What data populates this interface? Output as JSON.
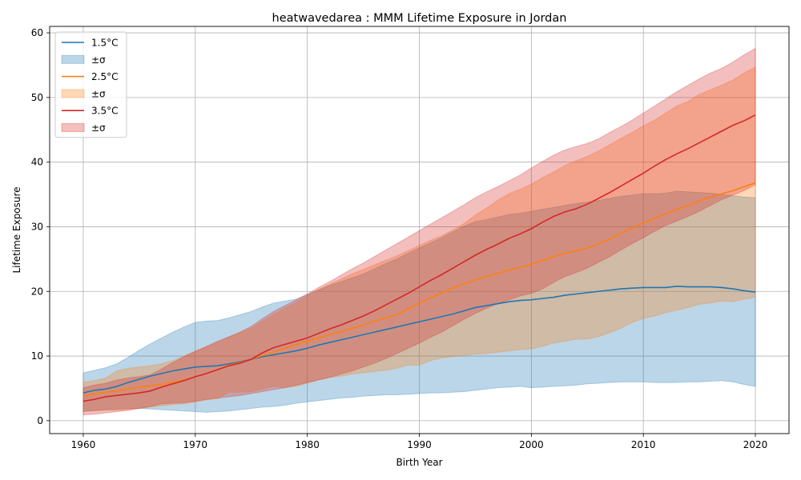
{
  "chart_data": {
    "type": "area",
    "title": "heatwavedarea : MMM Lifetime Exposure in Jordan",
    "xlabel": "Birth Year",
    "ylabel": "Lifetime Exposure",
    "xlim": [
      1957,
      2023
    ],
    "ylim": [
      -2,
      61
    ],
    "xticks": [
      1960,
      1970,
      1980,
      1990,
      2000,
      2010,
      2020
    ],
    "yticks": [
      0,
      10,
      20,
      30,
      40,
      50,
      60
    ],
    "grid": true,
    "legend_position": "top-left",
    "x": [
      1960,
      1961,
      1962,
      1963,
      1964,
      1965,
      1966,
      1967,
      1968,
      1969,
      1970,
      1971,
      1972,
      1973,
      1974,
      1975,
      1976,
      1977,
      1978,
      1979,
      1980,
      1981,
      1982,
      1983,
      1984,
      1985,
      1986,
      1987,
      1988,
      1989,
      1990,
      1991,
      1992,
      1993,
      1994,
      1995,
      1996,
      1997,
      1998,
      1999,
      2000,
      2001,
      2002,
      2003,
      2004,
      2005,
      2006,
      2007,
      2008,
      2009,
      2010,
      2011,
      2012,
      2013,
      2014,
      2015,
      2016,
      2017,
      2018,
      2019,
      2020
    ],
    "series": [
      {
        "name": "1.5°C",
        "band_label": "±σ",
        "color": "#1f77b4",
        "band_color": "#1f77b4",
        "mean": [
          4.3,
          4.7,
          4.9,
          5.3,
          5.9,
          6.4,
          6.9,
          7.3,
          7.7,
          8.0,
          8.3,
          8.4,
          8.5,
          8.8,
          9.1,
          9.5,
          9.9,
          10.2,
          10.5,
          10.8,
          11.2,
          11.7,
          12.1,
          12.5,
          12.9,
          13.3,
          13.7,
          14.1,
          14.5,
          14.9,
          15.3,
          15.7,
          16.1,
          16.5,
          17.0,
          17.5,
          17.8,
          18.1,
          18.4,
          18.6,
          18.7,
          18.9,
          19.1,
          19.4,
          19.6,
          19.8,
          20.0,
          20.2,
          20.4,
          20.5,
          20.6,
          20.6,
          20.6,
          20.8,
          20.7,
          20.7,
          20.7,
          20.6,
          20.4,
          20.1,
          19.9
        ],
        "upper": [
          7.4,
          7.8,
          8.2,
          8.8,
          9.8,
          10.9,
          11.9,
          12.8,
          13.7,
          14.5,
          15.2,
          15.4,
          15.5,
          15.9,
          16.4,
          16.9,
          17.6,
          18.2,
          18.5,
          18.8,
          19.5,
          20.2,
          20.9,
          21.5,
          22.1,
          22.7,
          23.5,
          24.3,
          25.0,
          25.9,
          26.7,
          27.5,
          28.3,
          29.2,
          30.1,
          30.8,
          31.1,
          31.5,
          31.9,
          32.1,
          32.4,
          32.7,
          33.0,
          33.3,
          33.6,
          33.8,
          34.1,
          34.4,
          34.7,
          34.9,
          35.1,
          35.1,
          35.2,
          35.5,
          35.4,
          35.3,
          35.2,
          35.0,
          34.8,
          34.6,
          34.5
        ],
        "lower": [
          1.4,
          1.6,
          1.7,
          1.8,
          1.9,
          1.9,
          1.8,
          1.7,
          1.6,
          1.5,
          1.4,
          1.3,
          1.4,
          1.5,
          1.7,
          1.9,
          2.1,
          2.2,
          2.4,
          2.7,
          2.9,
          3.1,
          3.3,
          3.5,
          3.6,
          3.8,
          3.9,
          4.0,
          4.0,
          4.1,
          4.2,
          4.3,
          4.3,
          4.4,
          4.5,
          4.7,
          4.9,
          5.1,
          5.2,
          5.3,
          5.1,
          5.2,
          5.3,
          5.4,
          5.5,
          5.7,
          5.8,
          5.9,
          6.0,
          6.0,
          6.0,
          5.9,
          5.9,
          5.9,
          6.0,
          6.0,
          6.1,
          6.2,
          6.0,
          5.6,
          5.3
        ]
      },
      {
        "name": "2.5°C",
        "band_label": "±σ",
        "color": "#ff7f0e",
        "band_color": "#ff7f0e",
        "mean": [
          3.8,
          4.1,
          4.4,
          4.6,
          4.9,
          5.2,
          5.4,
          5.6,
          5.9,
          6.3,
          6.8,
          7.3,
          7.9,
          8.6,
          9.0,
          9.5,
          10.1,
          10.6,
          11.2,
          11.8,
          12.3,
          12.8,
          13.3,
          13.8,
          14.3,
          14.8,
          15.4,
          15.9,
          16.4,
          17.3,
          18.2,
          19.0,
          19.8,
          20.5,
          21.2,
          21.8,
          22.3,
          22.8,
          23.3,
          23.7,
          24.2,
          24.8,
          25.4,
          25.9,
          26.3,
          26.7,
          27.4,
          28.1,
          29.0,
          29.8,
          30.6,
          31.3,
          32.0,
          32.7,
          33.3,
          34.0,
          34.6,
          35.1,
          35.6,
          36.2,
          36.8
        ],
        "upper": [
          5.9,
          6.2,
          6.6,
          7.7,
          8.1,
          8.3,
          8.5,
          8.8,
          9.3,
          10.0,
          10.8,
          11.4,
          12.1,
          12.9,
          13.6,
          14.3,
          15.4,
          16.4,
          17.4,
          18.3,
          19.3,
          20.3,
          21.1,
          21.9,
          22.7,
          23.4,
          24.1,
          24.8,
          25.5,
          26.3,
          27.1,
          27.9,
          28.6,
          29.5,
          30.5,
          31.8,
          32.9,
          34.1,
          35.1,
          35.8,
          36.6,
          37.6,
          38.5,
          39.5,
          40.2,
          40.9,
          41.7,
          42.7,
          43.7,
          44.6,
          45.6,
          46.5,
          47.6,
          48.7,
          49.4,
          50.5,
          51.2,
          51.9,
          52.7,
          53.8,
          54.7
        ],
        "lower": [
          1.5,
          1.5,
          1.6,
          1.6,
          1.7,
          1.9,
          2.1,
          2.3,
          2.5,
          2.6,
          2.9,
          3.2,
          3.4,
          4.4,
          4.4,
          4.5,
          4.9,
          5.3,
          5.1,
          5.3,
          5.8,
          6.3,
          6.7,
          6.9,
          7.2,
          7.4,
          7.6,
          7.8,
          8.1,
          8.6,
          8.6,
          9.3,
          9.7,
          9.9,
          10.1,
          10.3,
          10.4,
          10.6,
          10.8,
          11.0,
          11.1,
          11.5,
          12.0,
          12.3,
          12.6,
          12.6,
          13.0,
          13.6,
          14.3,
          15.2,
          15.8,
          16.2,
          16.7,
          17.1,
          17.5,
          18.0,
          18.2,
          18.5,
          18.4,
          18.8,
          19.1
        ]
      },
      {
        "name": "3.5°C",
        "band_label": "±σ",
        "color": "#d62728",
        "band_color": "#d62728",
        "mean": [
          3.0,
          3.3,
          3.7,
          3.9,
          4.1,
          4.3,
          4.6,
          5.2,
          5.7,
          6.2,
          6.8,
          7.3,
          7.9,
          8.5,
          8.9,
          9.5,
          10.5,
          11.3,
          11.8,
          12.3,
          12.8,
          13.5,
          14.2,
          14.8,
          15.5,
          16.2,
          17.0,
          17.9,
          18.8,
          19.7,
          20.7,
          21.7,
          22.6,
          23.6,
          24.6,
          25.6,
          26.5,
          27.3,
          28.2,
          28.9,
          29.7,
          30.7,
          31.6,
          32.3,
          32.8,
          33.5,
          34.4,
          35.3,
          36.3,
          37.3,
          38.3,
          39.4,
          40.4,
          41.3,
          42.1,
          43.0,
          43.9,
          44.8,
          45.7,
          46.4,
          47.3
        ],
        "upper": [
          5.1,
          5.5,
          5.8,
          6.3,
          6.6,
          6.8,
          7.1,
          8.0,
          9.0,
          9.9,
          10.7,
          11.5,
          12.3,
          13.0,
          13.7,
          14.6,
          15.8,
          16.9,
          17.8,
          18.7,
          19.6,
          20.6,
          21.5,
          22.5,
          23.5,
          24.4,
          25.4,
          26.4,
          27.4,
          28.4,
          29.4,
          30.4,
          31.4,
          32.4,
          33.4,
          34.5,
          35.4,
          36.2,
          37.1,
          38.0,
          39.1,
          40.1,
          41.1,
          41.9,
          42.4,
          42.9,
          43.6,
          44.6,
          45.5,
          46.5,
          47.6,
          48.7,
          49.8,
          50.9,
          51.9,
          52.9,
          53.8,
          54.5,
          55.5,
          56.6,
          57.6
        ],
        "lower": [
          0.9,
          1.0,
          1.2,
          1.4,
          1.6,
          1.9,
          2.2,
          2.6,
          2.7,
          2.8,
          3.0,
          3.3,
          3.5,
          3.7,
          3.9,
          4.2,
          4.5,
          4.8,
          5.1,
          5.5,
          5.9,
          6.3,
          6.7,
          7.2,
          7.7,
          8.3,
          8.9,
          9.6,
          10.4,
          11.2,
          12.0,
          12.9,
          13.7,
          14.7,
          15.7,
          16.6,
          17.4,
          18.1,
          18.7,
          19.3,
          19.7,
          20.4,
          21.4,
          22.3,
          22.9,
          23.6,
          24.5,
          25.4,
          26.4,
          27.4,
          28.3,
          29.3,
          30.2,
          30.9,
          31.6,
          32.4,
          33.3,
          34.2,
          34.9,
          35.6,
          36.5
        ]
      }
    ]
  }
}
